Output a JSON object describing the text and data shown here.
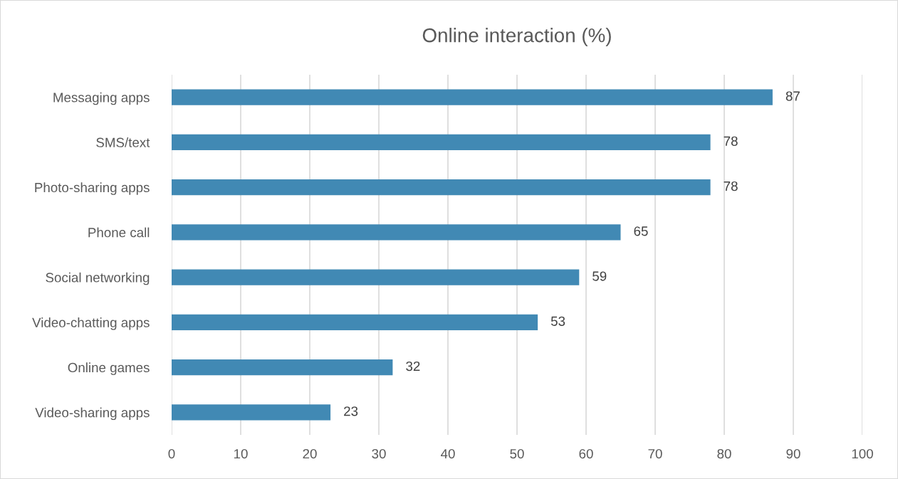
{
  "chart_data": {
    "type": "bar",
    "orientation": "horizontal",
    "title": "Online interaction (%)",
    "categories": [
      "Messaging apps",
      "SMS/text",
      "Photo-sharing apps",
      "Phone call",
      "Social networking",
      "Video-chatting apps",
      "Online games",
      "Video-sharing apps"
    ],
    "values": [
      87,
      78,
      78,
      65,
      59,
      53,
      32,
      23
    ],
    "color": "#4189b4",
    "xlim": [
      0,
      100
    ],
    "xticks": [
      0,
      10,
      20,
      30,
      40,
      50,
      60,
      70,
      80,
      90,
      100
    ],
    "grid": "x",
    "data_labels": true
  }
}
